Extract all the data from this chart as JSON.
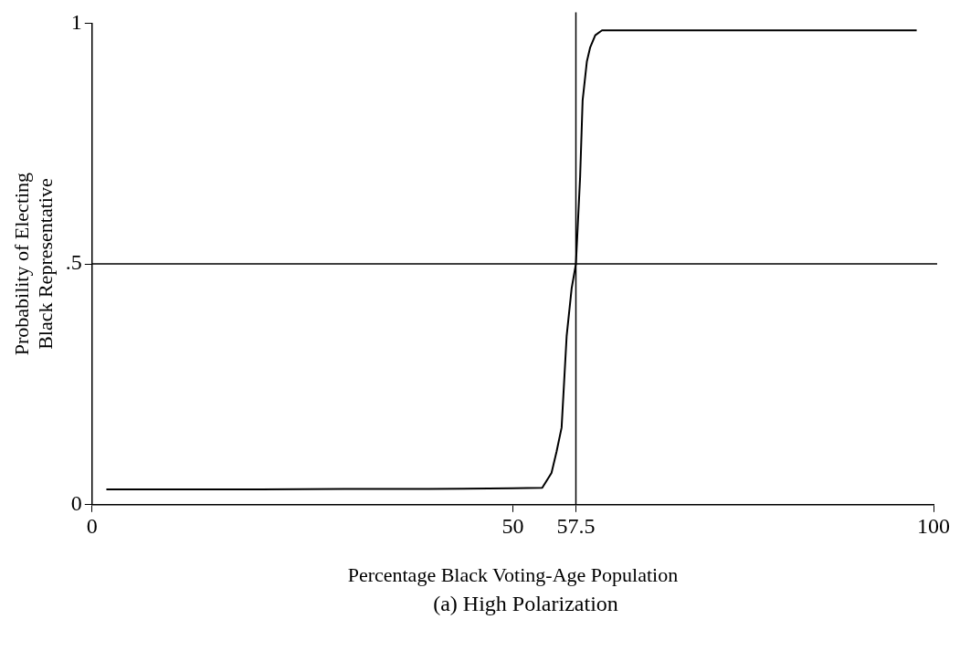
{
  "chart_data": {
    "type": "line",
    "xlabel": "Percentage Black Voting-Age Population",
    "ylabel": "Probability of Electing\nBlack Representative",
    "annotations": [
      "(a) High Polarization"
    ],
    "x": [
      1.7,
      10,
      20,
      30,
      40,
      50,
      53.5,
      54.6,
      55.2,
      55.8,
      56.4,
      57,
      57.5,
      58,
      58.3,
      58.8,
      59.2,
      59.8,
      60.6,
      70,
      80,
      90,
      98
    ],
    "series": [
      {
        "color": "#000000",
        "values": [
          0.032,
          0.032,
          0.032,
          0.033,
          0.033,
          0.034,
          0.035,
          0.066,
          0.11,
          0.16,
          0.35,
          0.45,
          0.5,
          0.68,
          0.84,
          0.92,
          0.95,
          0.975,
          0.985,
          0.985,
          0.985,
          0.985,
          0.985
        ]
      }
    ],
    "xlim": [
      0,
      100
    ],
    "ylim": [
      0,
      1
    ],
    "xticks": [
      0,
      50,
      57.5,
      100
    ],
    "yticks": [
      0,
      {
        "value": 0.5,
        "label": ".5"
      },
      1
    ],
    "ref_lines": [
      {
        "axis": "x",
        "value": 57.5
      },
      {
        "axis": "y",
        "value": 0.5
      }
    ],
    "grid": false,
    "legend": false,
    "marker": "none",
    "line_style": "solid"
  }
}
